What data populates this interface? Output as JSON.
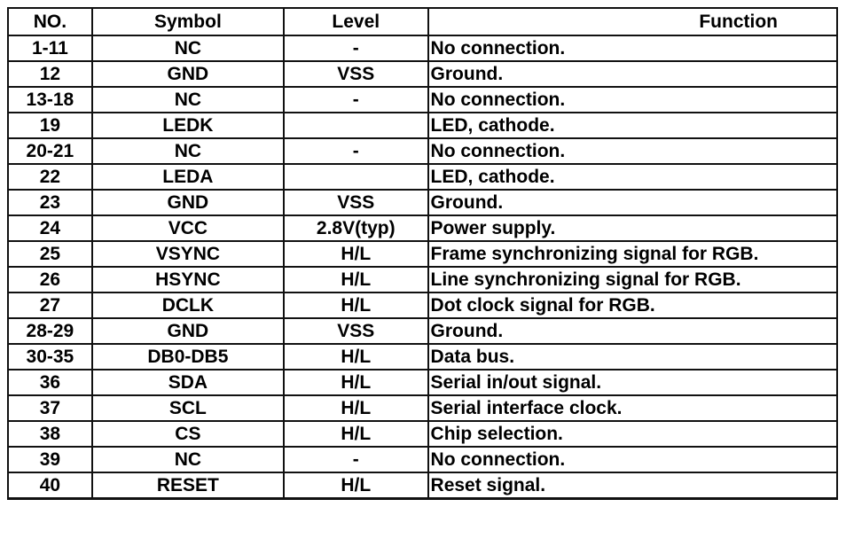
{
  "headers": {
    "no": "NO.",
    "symbol": "Symbol",
    "level": "Level",
    "function": "Function"
  },
  "rows": [
    {
      "no": "1-11",
      "symbol": "NC",
      "level": "-",
      "function": "No connection."
    },
    {
      "no": "12",
      "symbol": "GND",
      "level": "VSS",
      "function": "Ground."
    },
    {
      "no": "13-18",
      "symbol": "NC",
      "level": "-",
      "function": "No connection."
    },
    {
      "no": "19",
      "symbol": "LEDK",
      "level": "",
      "function": "LED, cathode."
    },
    {
      "no": "20-21",
      "symbol": "NC",
      "level": "-",
      "function": "No connection."
    },
    {
      "no": "22",
      "symbol": "LEDA",
      "level": "",
      "function": "LED, cathode."
    },
    {
      "no": "23",
      "symbol": "GND",
      "level": "VSS",
      "function": "Ground."
    },
    {
      "no": "24",
      "symbol": "VCC",
      "level": "2.8V(typ)",
      "function": "Power supply."
    },
    {
      "no": "25",
      "symbol": "VSYNC",
      "level": "H/L",
      "function": "Frame synchronizing signal for RGB."
    },
    {
      "no": "26",
      "symbol": "HSYNC",
      "level": "H/L",
      "function": "Line synchronizing signal for RGB."
    },
    {
      "no": "27",
      "symbol": "DCLK",
      "level": "H/L",
      "function": "Dot clock signal for RGB."
    },
    {
      "no": "28-29",
      "symbol": "GND",
      "level": "VSS",
      "function": "Ground."
    },
    {
      "no": "30-35",
      "symbol": "DB0-DB5",
      "level": "H/L",
      "function": "Data bus."
    },
    {
      "no": "36",
      "symbol": "SDA",
      "level": "H/L",
      "function": "Serial in/out signal."
    },
    {
      "no": "37",
      "symbol": "SCL",
      "level": "H/L",
      "function": "Serial interface clock."
    },
    {
      "no": "38",
      "symbol": "CS",
      "level": "H/L",
      "function": "Chip selection."
    },
    {
      "no": "39",
      "symbol": "NC",
      "level": "-",
      "function": "No connection."
    },
    {
      "no": "40",
      "symbol": "RESET",
      "level": "H/L",
      "function": "Reset signal."
    }
  ]
}
